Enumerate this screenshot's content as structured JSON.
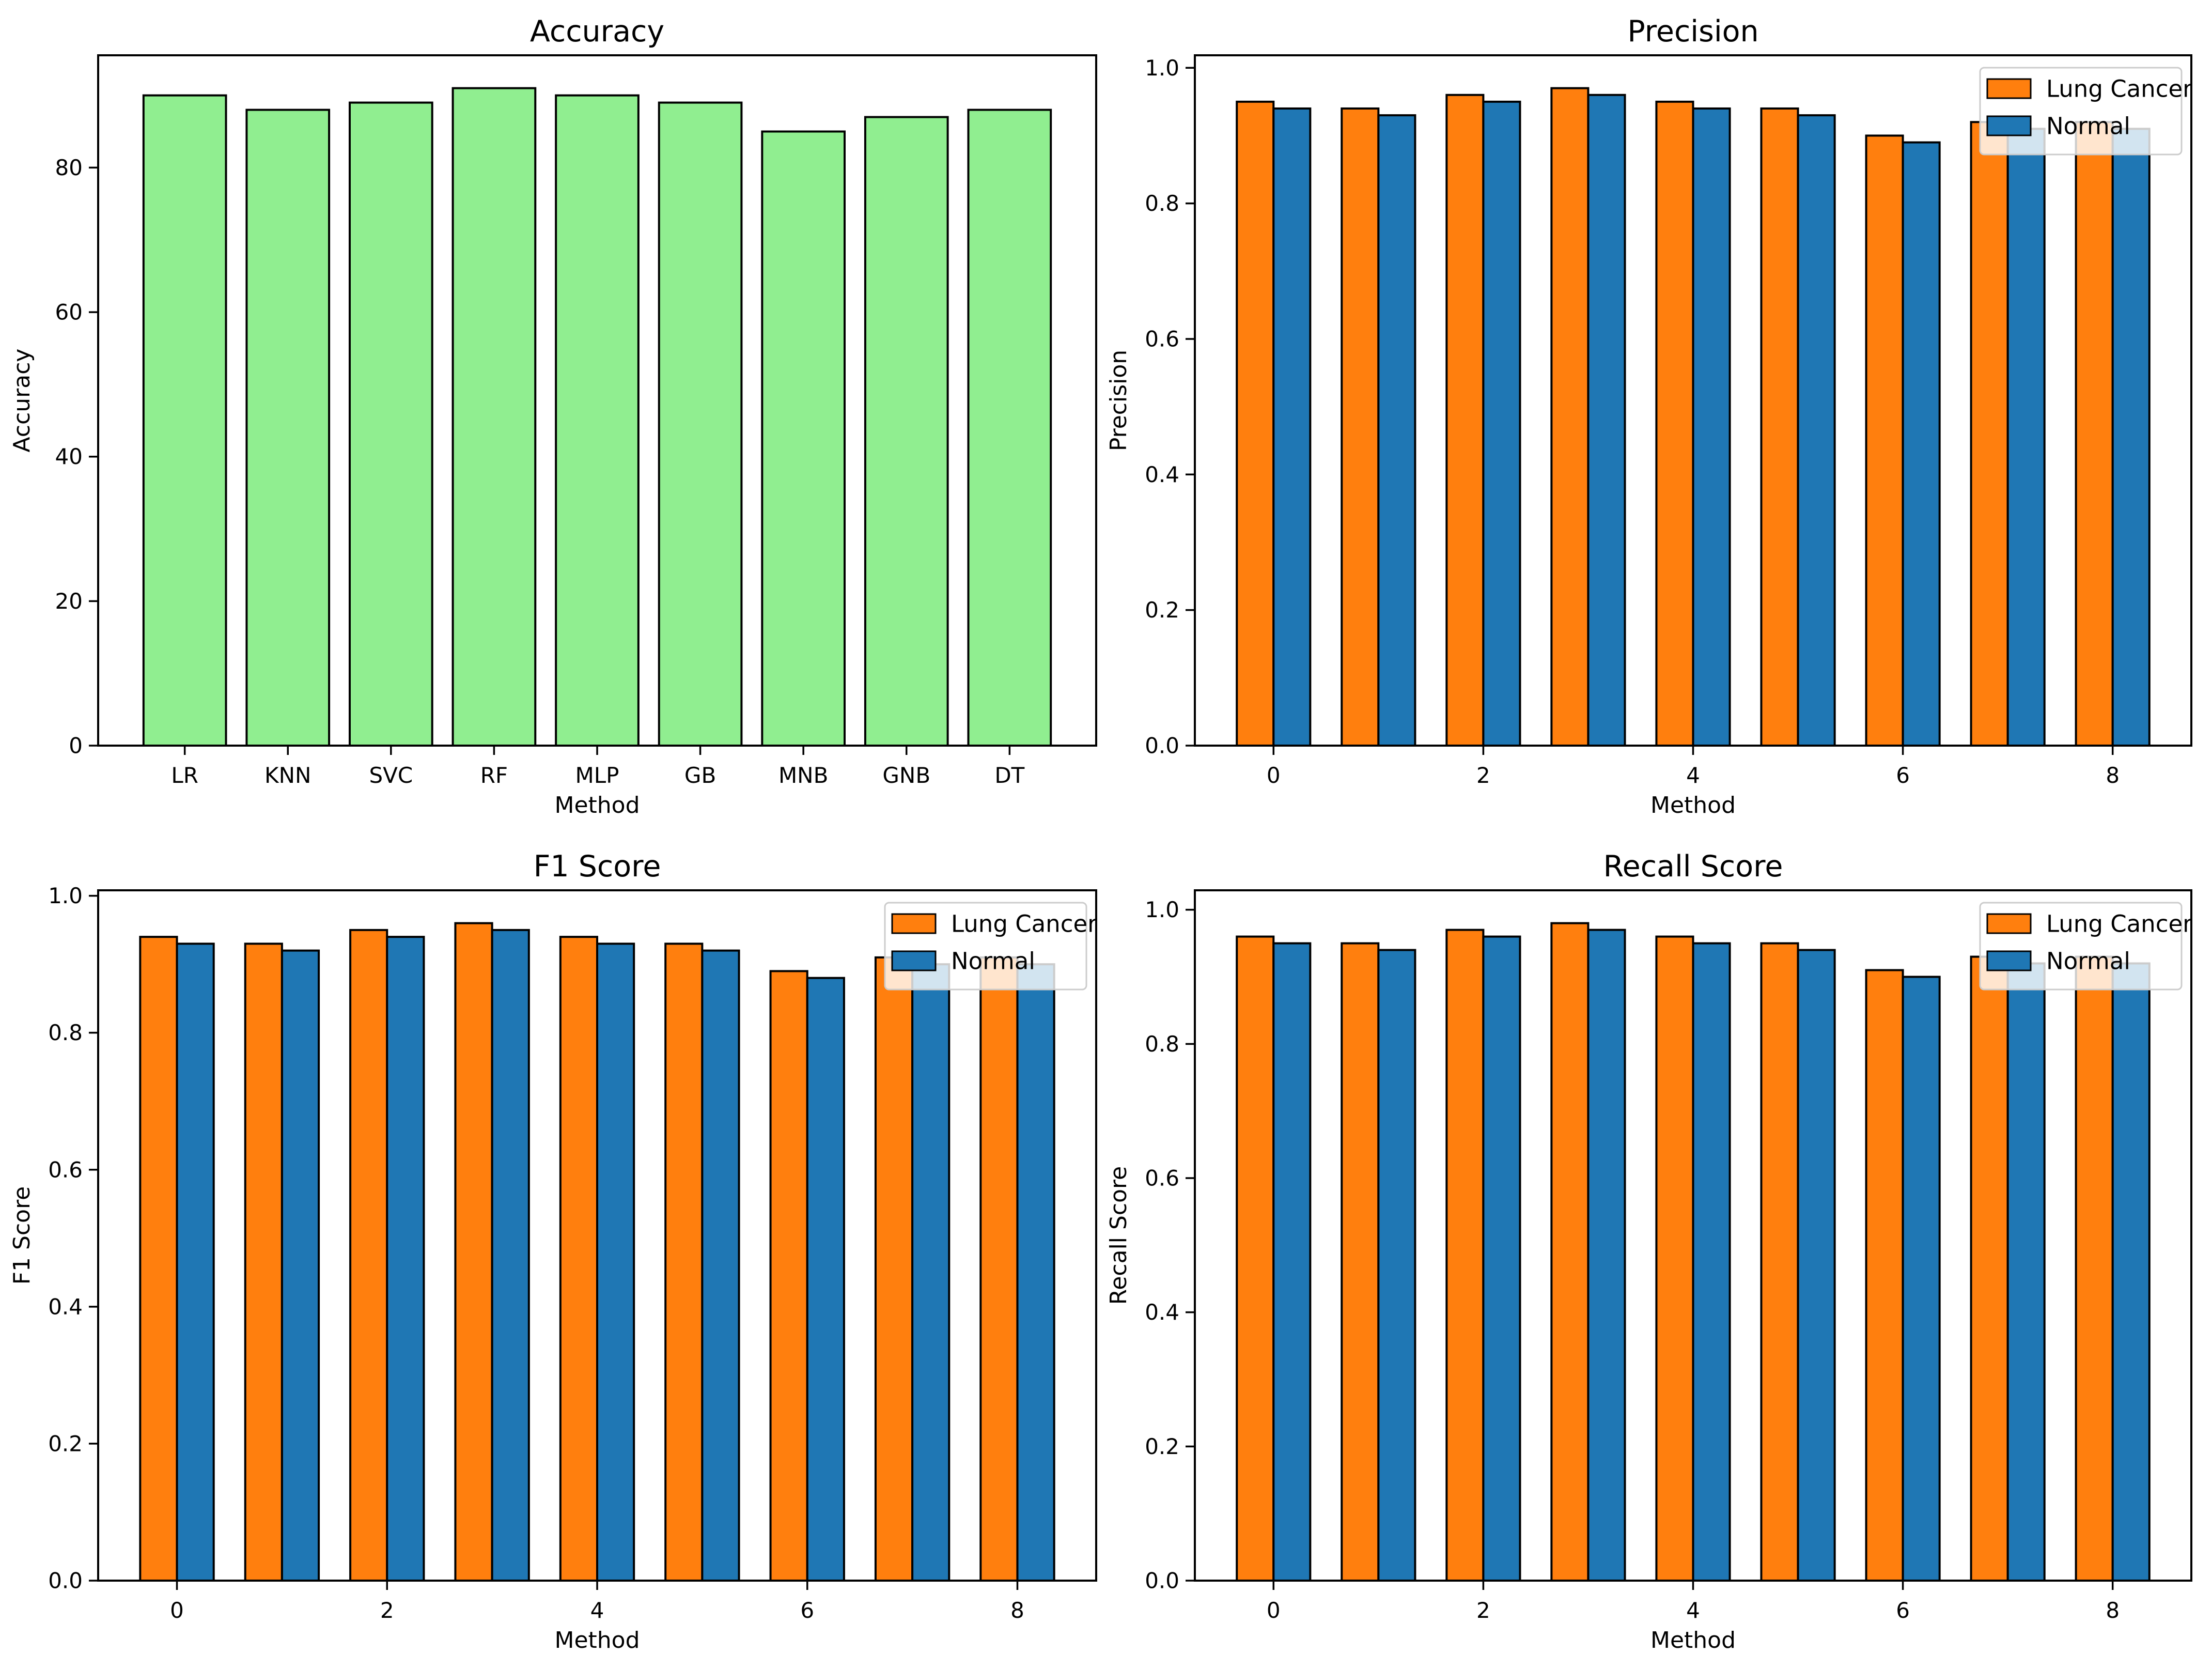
{
  "figure": {
    "background": "#ffffff",
    "text_color": "#000000"
  },
  "colors": {
    "lung_cancer": "#ff7f0e",
    "normal": "#1f77b4",
    "accuracy_bar": "#90ee90",
    "edge": "#000000",
    "legend_border": "#cccccc",
    "legend_fill": "#ffffff"
  },
  "legend": {
    "entries": [
      {
        "label": "Lung Cancer",
        "color": "#ff7f0e"
      },
      {
        "label": "Normal",
        "color": "#1f77b4"
      }
    ]
  },
  "chart_data": [
    {
      "id": "accuracy",
      "type": "bar",
      "title": "Accuracy",
      "xlabel": "Method",
      "ylabel": "Accuracy",
      "categories": [
        "LR",
        "KNN",
        "SVC",
        "RF",
        "MLP",
        "GB",
        "MNB",
        "GNB",
        "DT"
      ],
      "values": [
        90,
        88,
        89,
        91,
        90,
        89,
        85,
        87,
        88
      ],
      "bar_color": "#90ee90",
      "bar_width": 0.8,
      "xlim": [
        -0.84,
        8.84
      ],
      "ylim": [
        0,
        95.55
      ],
      "yticks": {
        "values": [
          0,
          20,
          40,
          60,
          80
        ],
        "labels": [
          "0",
          "20",
          "40",
          "60",
          "80"
        ]
      },
      "xticks": "categories",
      "legend": false,
      "grid": false
    },
    {
      "id": "precision",
      "type": "bar",
      "title": "Precision",
      "xlabel": "Method",
      "ylabel": "Precision",
      "categories": [
        0,
        1,
        2,
        3,
        4,
        5,
        6,
        7,
        8
      ],
      "series": [
        {
          "name": "Lung Cancer",
          "color": "#ff7f0e",
          "values": [
            0.95,
            0.94,
            0.96,
            0.97,
            0.95,
            0.94,
            0.9,
            0.92,
            0.92
          ]
        },
        {
          "name": "Normal",
          "color": "#1f77b4",
          "values": [
            0.94,
            0.93,
            0.95,
            0.96,
            0.94,
            0.93,
            0.89,
            0.91,
            0.91
          ]
        }
      ],
      "bar_width": 0.35,
      "xlim": [
        -0.75,
        8.75
      ],
      "ylim": [
        0,
        1.0185
      ],
      "yticks": {
        "values": [
          0,
          0.2,
          0.4,
          0.6,
          0.8,
          1.0
        ],
        "labels": [
          "0.0",
          "0.2",
          "0.4",
          "0.6",
          "0.8",
          "1.0"
        ]
      },
      "xticks": {
        "values": [
          0,
          2,
          4,
          6,
          8
        ],
        "labels": [
          "0",
          "2",
          "4",
          "6",
          "8"
        ]
      },
      "legend": true,
      "legend_loc": "upper right",
      "grid": false
    },
    {
      "id": "f1",
      "type": "bar",
      "title": "F1 Score",
      "xlabel": "Method",
      "ylabel": "F1 Score",
      "categories": [
        0,
        1,
        2,
        3,
        4,
        5,
        6,
        7,
        8
      ],
      "series": [
        {
          "name": "Lung Cancer",
          "color": "#ff7f0e",
          "values": [
            0.94,
            0.93,
            0.95,
            0.96,
            0.94,
            0.93,
            0.89,
            0.91,
            0.91
          ]
        },
        {
          "name": "Normal",
          "color": "#1f77b4",
          "values": [
            0.93,
            0.92,
            0.94,
            0.95,
            0.93,
            0.92,
            0.88,
            0.9,
            0.9
          ]
        }
      ],
      "bar_width": 0.35,
      "xlim": [
        -0.75,
        8.75
      ],
      "ylim": [
        0,
        1.008
      ],
      "yticks": {
        "values": [
          0,
          0.2,
          0.4,
          0.6,
          0.8,
          1.0
        ],
        "labels": [
          "0.0",
          "0.2",
          "0.4",
          "0.6",
          "0.8",
          "1.0"
        ]
      },
      "xticks": {
        "values": [
          0,
          2,
          4,
          6,
          8
        ],
        "labels": [
          "0",
          "2",
          "4",
          "6",
          "8"
        ]
      },
      "legend": true,
      "legend_loc": "upper right",
      "grid": false
    },
    {
      "id": "recall",
      "type": "bar",
      "title": "Recall Score",
      "xlabel": "Method",
      "ylabel": "Recall Score",
      "categories": [
        0,
        1,
        2,
        3,
        4,
        5,
        6,
        7,
        8
      ],
      "series": [
        {
          "name": "Lung Cancer",
          "color": "#ff7f0e",
          "values": [
            0.96,
            0.95,
            0.97,
            0.98,
            0.96,
            0.95,
            0.91,
            0.93,
            0.93
          ]
        },
        {
          "name": "Normal",
          "color": "#1f77b4",
          "values": [
            0.95,
            0.94,
            0.96,
            0.97,
            0.95,
            0.94,
            0.9,
            0.92,
            0.92
          ]
        }
      ],
      "bar_width": 0.35,
      "xlim": [
        -0.75,
        8.75
      ],
      "ylim": [
        0,
        1.029
      ],
      "yticks": {
        "values": [
          0,
          0.2,
          0.4,
          0.6,
          0.8,
          1.0
        ],
        "labels": [
          "0.0",
          "0.2",
          "0.4",
          "0.6",
          "0.8",
          "1.0"
        ]
      },
      "xticks": {
        "values": [
          0,
          2,
          4,
          6,
          8
        ],
        "labels": [
          "0",
          "2",
          "4",
          "6",
          "8"
        ]
      },
      "legend": true,
      "legend_loc": "upper right",
      "grid": false
    }
  ]
}
